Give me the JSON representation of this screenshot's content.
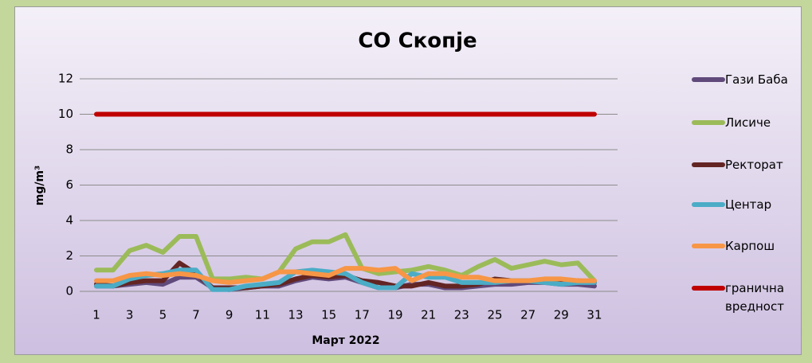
{
  "chart_data": {
    "type": "line",
    "title": "CO Скопје",
    "x_label": "Март 2022",
    "y_label": "mg/m³",
    "categories": [
      1,
      null,
      3,
      null,
      5,
      null,
      7,
      null,
      9,
      null,
      11,
      null,
      13,
      null,
      15,
      null,
      17,
      null,
      19,
      null,
      21,
      null,
      23,
      null,
      25,
      null,
      27,
      null,
      29,
      null,
      31
    ],
    "series": [
      {
        "name": "Гази Баба",
        "color": "#604a7b",
        "values": [
          0.3,
          0.3,
          0.4,
          0.5,
          0.4,
          0.8,
          0.8,
          0.2,
          0.1,
          0.2,
          0.3,
          0.3,
          0.6,
          0.8,
          0.7,
          0.8,
          0.5,
          0.2,
          0.2,
          0.4,
          0.4,
          0.2,
          0.2,
          0.3,
          0.4,
          0.4,
          0.5,
          0.5,
          0.4,
          0.4,
          0.3
        ]
      },
      {
        "name": "Лисиче",
        "color": "#9bbb59",
        "values": [
          1.2,
          1.2,
          2.3,
          2.6,
          2.2,
          3.1,
          3.1,
          0.7,
          0.7,
          0.8,
          0.7,
          1.1,
          2.4,
          2.8,
          2.8,
          3.2,
          1.3,
          1.0,
          1.1,
          1.2,
          1.4,
          1.2,
          0.9,
          1.4,
          1.8,
          1.3,
          1.5,
          1.7,
          1.5,
          1.6,
          0.6
        ]
      },
      {
        "name": "Ректорат",
        "color": "#632523",
        "values": [
          0.4,
          0.3,
          0.5,
          0.6,
          0.6,
          1.6,
          1.0,
          0.2,
          0.2,
          0.2,
          0.3,
          0.4,
          0.7,
          0.9,
          0.8,
          0.9,
          0.6,
          0.5,
          0.3,
          0.3,
          0.5,
          0.3,
          0.3,
          0.4,
          0.7,
          0.6,
          0.6,
          0.6,
          0.5,
          0.6,
          0.5
        ]
      },
      {
        "name": "Центар",
        "color": "#4bacc6",
        "values": [
          0.3,
          0.3,
          0.7,
          0.9,
          1.0,
          1.2,
          1.2,
          0.1,
          0.1,
          0.3,
          0.4,
          0.5,
          1.1,
          1.2,
          1.1,
          1.0,
          0.5,
          0.2,
          0.2,
          1.0,
          0.8,
          0.8,
          0.5,
          0.5,
          0.5,
          0.6,
          0.6,
          0.5,
          0.4,
          0.5,
          0.5
        ]
      },
      {
        "name": "Карпош",
        "color": "#f79646",
        "values": [
          0.6,
          0.6,
          0.9,
          1.0,
          0.9,
          1.0,
          0.9,
          0.6,
          0.5,
          0.6,
          0.7,
          1.1,
          1.1,
          1.0,
          0.9,
          1.3,
          1.3,
          1.2,
          1.3,
          0.6,
          1.0,
          1.0,
          0.8,
          0.8,
          0.6,
          0.6,
          0.6,
          0.7,
          0.7,
          0.6,
          0.6
        ]
      },
      {
        "name": "гранична вредност",
        "color": "#c00000",
        "values": [
          10,
          10,
          10,
          10,
          10,
          10,
          10,
          10,
          10,
          10,
          10,
          10,
          10,
          10,
          10,
          10,
          10,
          10,
          10,
          10,
          10,
          10,
          10,
          10,
          10,
          10,
          10,
          10,
          10,
          10,
          10
        ]
      }
    ],
    "ylim": [
      0,
      12
    ],
    "yticks": [
      0,
      2,
      4,
      6,
      8,
      10,
      12
    ],
    "grid": true,
    "legend": "right"
  }
}
